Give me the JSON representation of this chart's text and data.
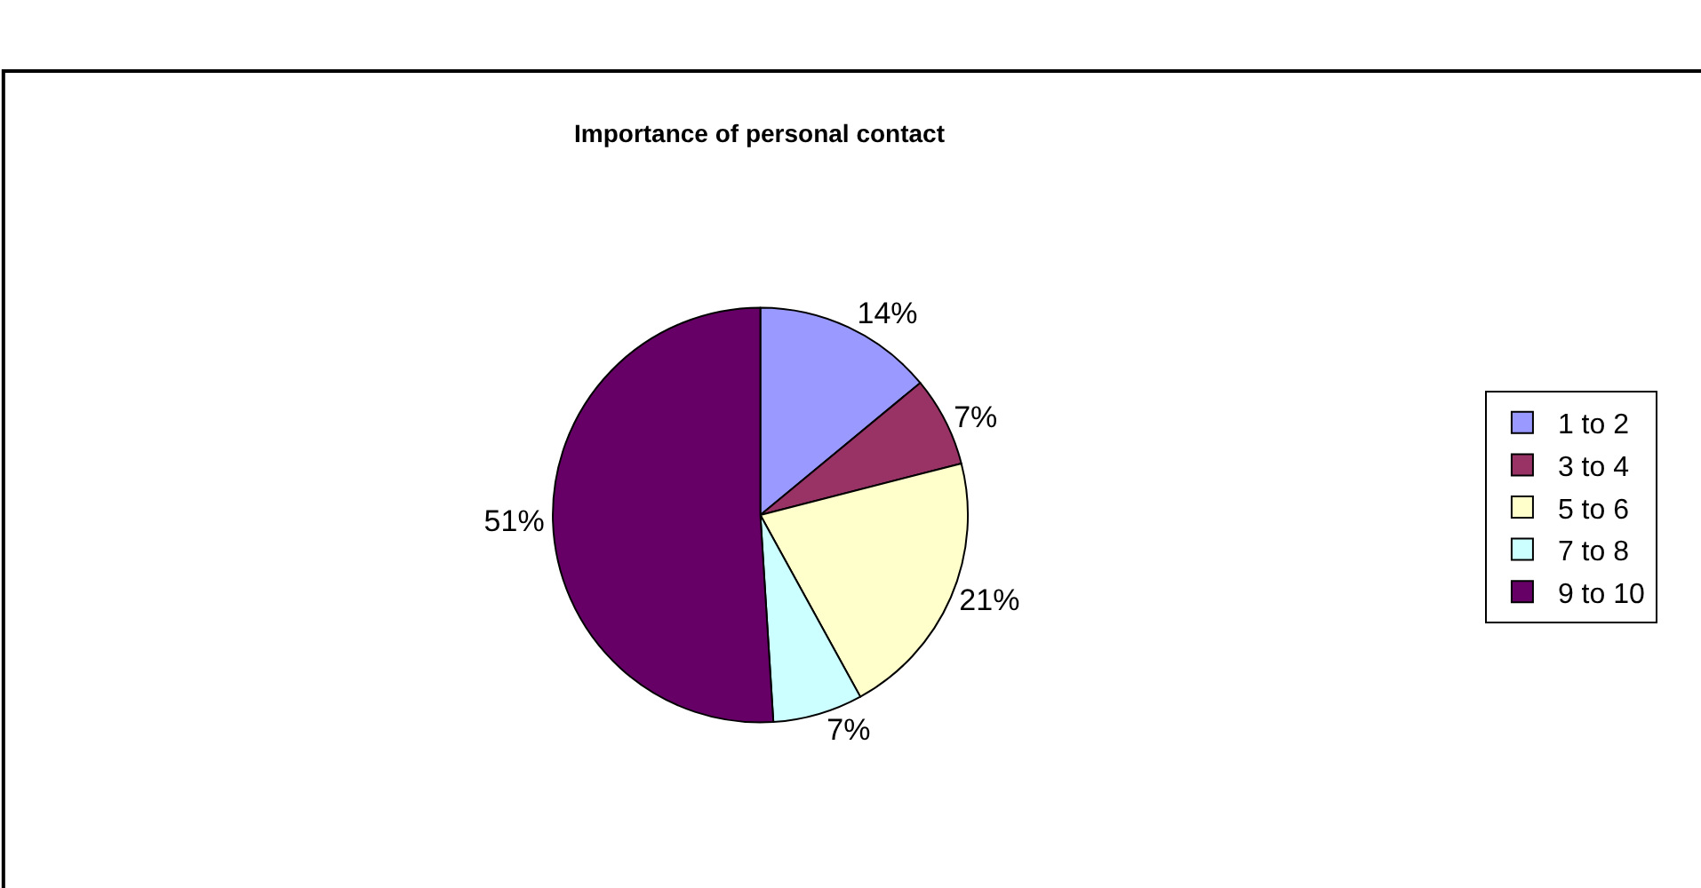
{
  "chart_data": {
    "type": "pie",
    "title": "Importance of personal contact",
    "categories": [
      "1 to 2",
      "3 to 4",
      "5 to 6",
      "7 to 8",
      "9 to 10"
    ],
    "values": [
      14,
      7,
      21,
      7,
      51
    ],
    "colors": [
      "#9999ff",
      "#993366",
      "#ffffcc",
      "#ccffff",
      "#660066"
    ],
    "value_labels": [
      "14%",
      "7%",
      "21%",
      "7%",
      "51%"
    ],
    "legend": "right"
  }
}
